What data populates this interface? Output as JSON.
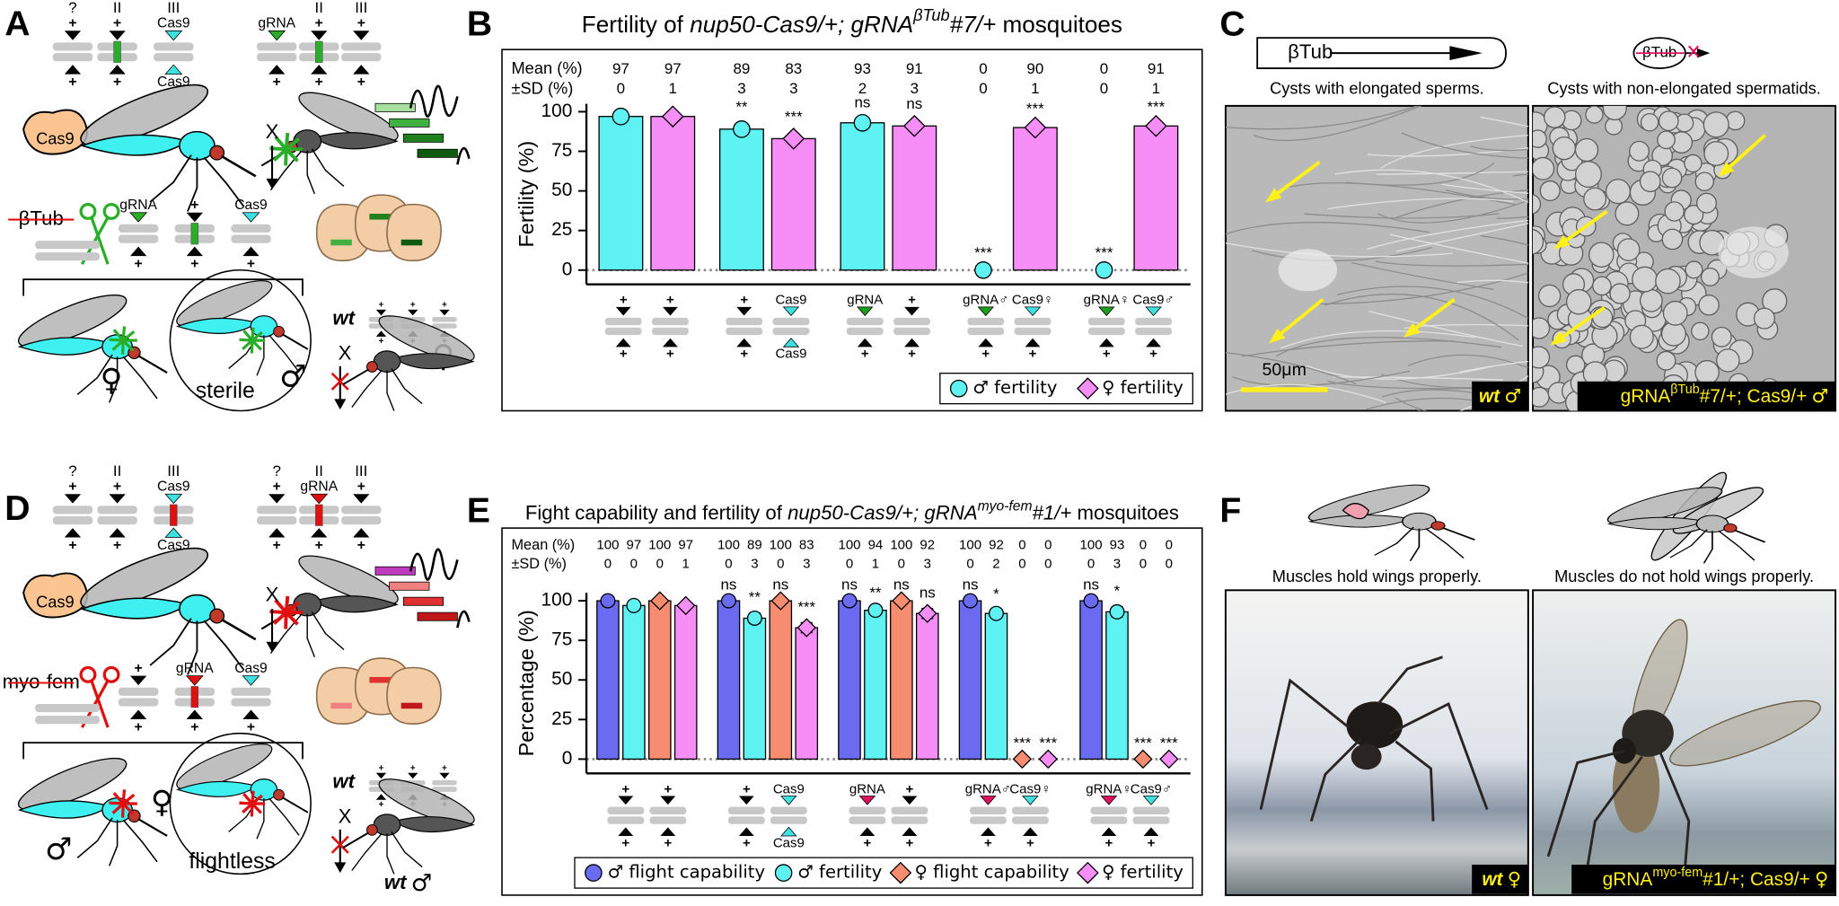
{
  "plus": "+",
  "panels": {
    "A": {
      "letter": "A",
      "chromosomes": [
        "?",
        "II",
        "III"
      ],
      "cas9": "Cas9",
      "grna": "gRNA",
      "cross": "X",
      "gene": "βTub",
      "sterile": "sterile",
      "wt": "wt",
      "female": "♀",
      "male": "♂"
    },
    "B": {
      "letter": "B"
    },
    "C": {
      "letter": "C",
      "gene": "βTub",
      "captions": [
        "Cysts with elongated sperms.",
        "Cysts with non-elongated spermatids."
      ],
      "scale_bar": "50μm",
      "image_labels": [
        [
          "wt",
          "♂"
        ],
        [
          "gRNA",
          "βTub",
          "#7/+; Cas9/+",
          "♂"
        ]
      ]
    },
    "D": {
      "letter": "D",
      "chromosomes": [
        "?",
        "II",
        "III"
      ],
      "cas9": "Cas9",
      "grna": "gRNA",
      "cross": "X",
      "gene": "myo-fem",
      "flightless": "flightless",
      "wt": "wt",
      "female": "♀",
      "male": "♂"
    },
    "E": {
      "letter": "E"
    },
    "F": {
      "letter": "F",
      "captions": [
        "Muscles hold wings properly.",
        "Muscles do not hold wings properly."
      ],
      "image_labels": [
        [
          "wt",
          "♀"
        ],
        [
          "gRNA",
          "myo-fem",
          "#1/+; Cas9/+",
          "♀"
        ]
      ]
    }
  },
  "chart_data": [
    {
      "type": "bar",
      "title": [
        "Fertility of ",
        "nup50-Cas9/+; gRNA",
        "βTub",
        "#7/+",
        " mosquitoes"
      ],
      "ylabel": "Fertility (%)",
      "ylim": [
        -9,
        105
      ],
      "yticks": [
        0,
        25,
        50,
        75,
        100
      ],
      "zero_line": true,
      "row_labels": [
        "Mean (%)",
        "±SD (%)"
      ],
      "categories": [
        null,
        null,
        null,
        null,
        null
      ],
      "genotype_labels": [
        [
          null,
          null
        ],
        [
          null,
          "Cas9"
        ],
        [
          "gRNA",
          null
        ],
        [
          "gRNA♂",
          "Cas9♀"
        ],
        [
          "gRNA♀",
          "Cas9♂"
        ]
      ],
      "genotype_labels_below": [
        [
          null,
          null
        ],
        [
          null,
          "Cas9"
        ],
        [
          null,
          null
        ],
        [
          null,
          null
        ],
        [
          null,
          null
        ]
      ],
      "genotype_colors": [
        [
          null,
          null
        ],
        [
          null,
          "#3fe0e0"
        ],
        [
          "#1e9e1e",
          null
        ],
        [
          "#1e9e1e",
          "#3fe0e0"
        ],
        [
          "#1e9e1e",
          "#3fe0e0"
        ]
      ],
      "genotype_label_colors": [
        [
          null,
          null
        ],
        [
          null,
          null
        ],
        [
          "#1e9e1e",
          null
        ],
        [
          "#1e9e1e",
          null
        ],
        [
          "#1e9e1e",
          null
        ]
      ],
      "series": [
        {
          "name": "♂ fertility",
          "color": "#5ff2f2",
          "marker": "circle",
          "values": [
            97,
            89,
            93,
            0,
            0
          ],
          "errors": [
            0,
            3,
            2,
            0,
            0
          ],
          "significance": [
            null,
            "**",
            "ns",
            "***",
            "***"
          ]
        },
        {
          "name": "♀ fertility",
          "color": "#f78ef7",
          "marker": "diamond",
          "values": [
            97,
            83,
            91,
            90,
            91
          ],
          "errors": [
            1,
            3,
            3,
            1,
            1
          ],
          "significance": [
            null,
            "***",
            "ns",
            "***",
            "***"
          ]
        }
      ],
      "legend": "lower right"
    },
    {
      "type": "bar",
      "title": [
        "Fight capability and fertility of ",
        "nup50-Cas9/+; gRNA",
        "myo-fem",
        "#1/+",
        " mosquitoes"
      ],
      "ylabel": "Percentage (%)",
      "ylim": [
        -9,
        105
      ],
      "yticks": [
        0,
        25,
        50,
        75,
        100
      ],
      "zero_line": true,
      "row_labels": [
        "Mean (%)",
        "±SD (%)"
      ],
      "categories": [
        null,
        null,
        null,
        null,
        null
      ],
      "genotype_labels": [
        [
          null,
          null
        ],
        [
          null,
          "Cas9"
        ],
        [
          "gRNA",
          null
        ],
        [
          "gRNA♂",
          "Cas9♀"
        ],
        [
          "gRNA♀",
          "Cas9♂"
        ]
      ],
      "genotype_labels_below": [
        [
          null,
          null
        ],
        [
          null,
          "Cas9"
        ],
        [
          null,
          null
        ],
        [
          null,
          null
        ],
        [
          null,
          null
        ]
      ],
      "genotype_colors": [
        [
          null,
          null
        ],
        [
          null,
          "#3fe0e0"
        ],
        [
          "#e0115f",
          null
        ],
        [
          "#e0115f",
          "#3fe0e0"
        ],
        [
          "#e0115f",
          "#3fe0e0"
        ]
      ],
      "genotype_label_colors": [
        [
          null,
          null
        ],
        [
          null,
          null
        ],
        [
          "#e0115f",
          null
        ],
        [
          "#e0115f",
          null
        ],
        [
          "#e0115f",
          null
        ]
      ],
      "series": [
        {
          "name": "♂ flight capability",
          "color": "#6b6bf2",
          "marker": "circle",
          "values": [
            100,
            100,
            100,
            100,
            100
          ],
          "errors": [
            0,
            0,
            0,
            0,
            0
          ],
          "significance": [
            null,
            "ns",
            "ns",
            "ns",
            "ns"
          ]
        },
        {
          "name": "♂ fertility",
          "color": "#5ff2f2",
          "marker": "circle",
          "values": [
            97,
            89,
            94,
            92,
            93
          ],
          "errors": [
            0,
            3,
            1,
            2,
            3
          ],
          "significance": [
            null,
            "**",
            "**",
            "*",
            "*"
          ]
        },
        {
          "name": "♀ flight capability",
          "color": "#f78c70",
          "marker": "diamond",
          "values": [
            100,
            100,
            100,
            0,
            0
          ],
          "errors": [
            0,
            0,
            0,
            0,
            0
          ],
          "significance": [
            null,
            "ns",
            "ns",
            "***",
            "***"
          ]
        },
        {
          "name": "♀ fertility",
          "color": "#f78ef7",
          "marker": "diamond",
          "values": [
            97,
            83,
            92,
            0,
            0
          ],
          "errors": [
            1,
            3,
            3,
            0,
            0
          ],
          "significance": [
            null,
            "***",
            "ns",
            "***",
            "***"
          ]
        }
      ],
      "legend": "bottom"
    }
  ]
}
